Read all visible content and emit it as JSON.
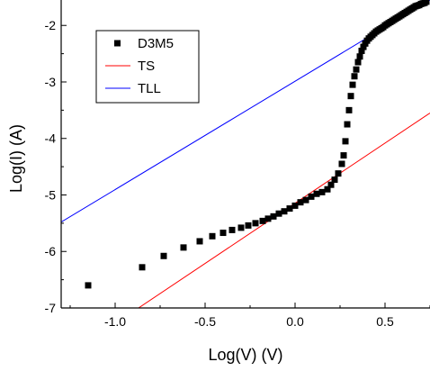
{
  "chart_data": {
    "type": "scatter",
    "xlabel": "Log(V) (V)",
    "ylabel": "Log(I) (A)",
    "xlim": [
      -1.3,
      0.75
    ],
    "ylim": [
      -7,
      -1.55
    ],
    "x_ticks": [
      -1.0,
      -0.5,
      0.0,
      0.5
    ],
    "x_tick_labels": [
      "-1.0",
      "-0.5",
      "0.0",
      "0.5"
    ],
    "y_ticks": [
      -7,
      -6,
      -5,
      -4,
      -3,
      -2
    ],
    "y_tick_labels": [
      "-7",
      "-6",
      "-5",
      "-4",
      "-3",
      "-2"
    ],
    "grid": false,
    "legend_position": "top-left",
    "series": [
      {
        "name": "D3M5",
        "kind": "scatter",
        "marker": "square",
        "color": "#000000",
        "points": [
          [
            -1.15,
            -6.6
          ],
          [
            -0.85,
            -6.28
          ],
          [
            -0.73,
            -6.08
          ],
          [
            -0.62,
            -5.93
          ],
          [
            -0.53,
            -5.82
          ],
          [
            -0.46,
            -5.73
          ],
          [
            -0.4,
            -5.67
          ],
          [
            -0.35,
            -5.62
          ],
          [
            -0.3,
            -5.58
          ],
          [
            -0.26,
            -5.54
          ],
          [
            -0.22,
            -5.5
          ],
          [
            -0.18,
            -5.46
          ],
          [
            -0.15,
            -5.42
          ],
          [
            -0.12,
            -5.38
          ],
          [
            -0.09,
            -5.33
          ],
          [
            -0.06,
            -5.29
          ],
          [
            -0.03,
            -5.24
          ],
          [
            0.0,
            -5.19
          ],
          [
            0.03,
            -5.13
          ],
          [
            0.06,
            -5.09
          ],
          [
            0.09,
            -5.03
          ],
          [
            0.12,
            -4.98
          ],
          [
            0.15,
            -4.95
          ],
          [
            0.18,
            -4.9
          ],
          [
            0.2,
            -4.82
          ],
          [
            0.22,
            -4.73
          ],
          [
            0.24,
            -4.62
          ],
          [
            0.26,
            -4.45
          ],
          [
            0.27,
            -4.3
          ],
          [
            0.28,
            -4.05
          ],
          [
            0.29,
            -3.75
          ],
          [
            0.3,
            -3.5
          ],
          [
            0.31,
            -3.25
          ],
          [
            0.32,
            -3.05
          ],
          [
            0.33,
            -2.9
          ],
          [
            0.34,
            -2.78
          ],
          [
            0.35,
            -2.65
          ],
          [
            0.36,
            -2.55
          ],
          [
            0.37,
            -2.45
          ],
          [
            0.38,
            -2.38
          ],
          [
            0.39,
            -2.32
          ],
          [
            0.4,
            -2.27
          ],
          [
            0.41,
            -2.23
          ],
          [
            0.42,
            -2.2
          ],
          [
            0.43,
            -2.17
          ],
          [
            0.44,
            -2.14
          ],
          [
            0.45,
            -2.11
          ],
          [
            0.46,
            -2.09
          ],
          [
            0.47,
            -2.07
          ],
          [
            0.48,
            -2.05
          ],
          [
            0.49,
            -2.03
          ],
          [
            0.5,
            -2.0
          ],
          [
            0.51,
            -1.98
          ],
          [
            0.52,
            -1.96
          ],
          [
            0.53,
            -1.94
          ],
          [
            0.54,
            -1.92
          ],
          [
            0.55,
            -1.9
          ],
          [
            0.56,
            -1.88
          ],
          [
            0.57,
            -1.86
          ],
          [
            0.58,
            -1.84
          ],
          [
            0.59,
            -1.82
          ],
          [
            0.6,
            -1.8
          ],
          [
            0.61,
            -1.78
          ],
          [
            0.62,
            -1.76
          ],
          [
            0.63,
            -1.74
          ],
          [
            0.64,
            -1.72
          ],
          [
            0.65,
            -1.7
          ],
          [
            0.66,
            -1.68
          ],
          [
            0.67,
            -1.66
          ],
          [
            0.68,
            -1.65
          ],
          [
            0.69,
            -1.64
          ],
          [
            0.7,
            -1.62
          ],
          [
            0.71,
            -1.61
          ],
          [
            0.72,
            -1.6
          ],
          [
            0.73,
            -1.58
          ]
        ]
      },
      {
        "name": "TS",
        "kind": "line",
        "color": "#ff0000",
        "points": [
          [
            -0.87,
            -7.0
          ],
          [
            0.75,
            -3.55
          ]
        ]
      },
      {
        "name": "TLL",
        "kind": "line",
        "color": "#0000ff",
        "points": [
          [
            -1.3,
            -5.48
          ],
          [
            0.75,
            -1.55
          ]
        ]
      }
    ]
  }
}
